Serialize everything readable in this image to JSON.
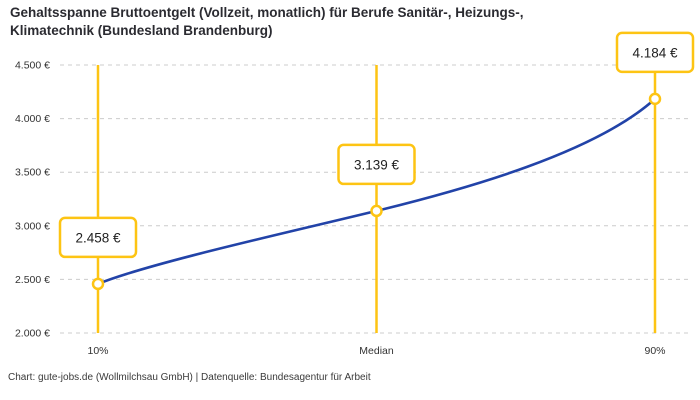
{
  "title": "Gehaltsspanne Bruttoentgelt (Vollzeit, monatlich) für Berufe Sanitär-, Heizungs-, Klimatechnik (Bundesland Brandenburg)",
  "footer": "Chart: gute-jobs.de (Wollmilchsau GmbH) | Datenquelle: Bundesagentur für Arbeit",
  "colors": {
    "accent_yellow": "#FDC413",
    "line_blue": "#2243A8",
    "grid_gray": "#CCCCCC",
    "axis_text": "#333333",
    "label_text": "#222222",
    "background": "#FFFFFF"
  },
  "chart_data": {
    "type": "line",
    "title": "Gehaltsspanne Bruttoentgelt (Vollzeit, monatlich) für Berufe Sanitär-, Heizungs-, Klimatechnik (Bundesland Brandenburg)",
    "categories": [
      "10%",
      "Median",
      "90%"
    ],
    "values": [
      2458,
      3139,
      4184
    ],
    "point_labels": [
      "2.458 €",
      "3.139 €",
      "4.184 €"
    ],
    "ylim": [
      2000,
      4500
    ],
    "yticks": [
      2000,
      2500,
      3000,
      3500,
      4000,
      4500
    ],
    "ytick_labels": [
      "2.000 €",
      "2.500 €",
      "3.000 €",
      "3.500 €",
      "4.000 €",
      "4.500 €"
    ],
    "xlabel": "",
    "ylabel": "",
    "grid": true,
    "legend": "none",
    "series_style": "smooth line with vertical yellow marker lines and boxed value labels at each category"
  }
}
